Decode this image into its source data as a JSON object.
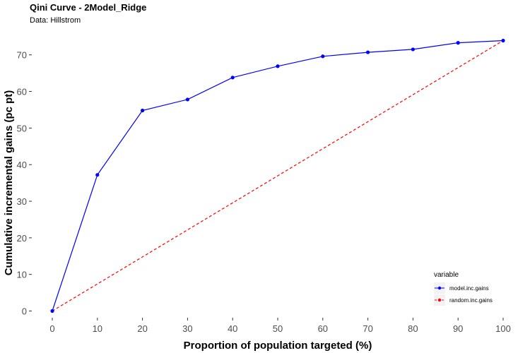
{
  "chart_data": {
    "type": "line",
    "title": "Qini Curve -  2Model_Ridge",
    "subtitle": "Data: Hillstrom",
    "xlabel": "Proportion of population targeted (%)",
    "ylabel": "Cumulative incremental gains (pc pt)",
    "x": [
      0,
      10,
      20,
      30,
      40,
      50,
      60,
      70,
      80,
      90,
      100
    ],
    "xticks": [
      "0",
      "10",
      "20",
      "30",
      "40",
      "50",
      "60",
      "70",
      "80",
      "90",
      "100"
    ],
    "yticks": [
      "0",
      "10",
      "20",
      "30",
      "40",
      "50",
      "60",
      "70"
    ],
    "xlim": [
      0,
      100
    ],
    "ylim": [
      0,
      73.9
    ],
    "grid": false,
    "legend": {
      "title": "variable",
      "position": "bottom-right"
    },
    "series": [
      {
        "name": "model.inc.gains",
        "color": "#0000ff",
        "line_style": "solid",
        "markers": true,
        "values": [
          0,
          37.2,
          54.8,
          57.8,
          63.8,
          66.9,
          69.6,
          70.7,
          71.5,
          73.3,
          73.9
        ]
      },
      {
        "name": "random.inc.gains",
        "color": "#ff0000",
        "line_style": "dashed",
        "markers": false,
        "values": [
          0,
          7.39,
          14.78,
          22.17,
          29.56,
          36.95,
          44.34,
          51.73,
          59.12,
          66.51,
          73.9
        ]
      }
    ]
  }
}
